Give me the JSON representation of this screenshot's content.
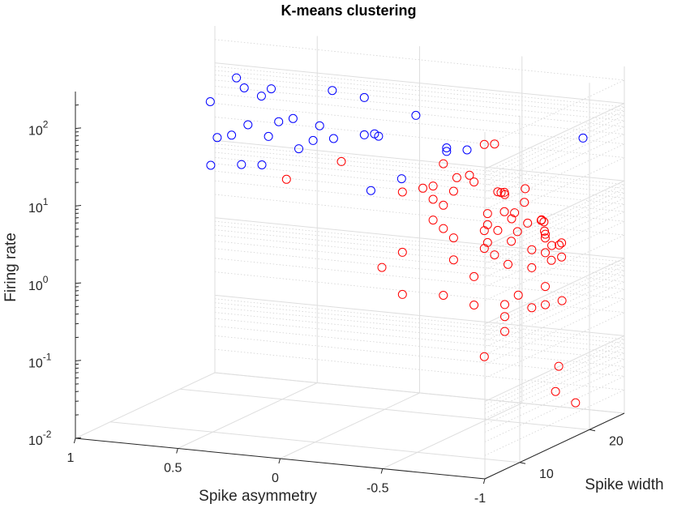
{
  "chart_data": {
    "type": "scatter",
    "title": "K-means clustering",
    "xlabel": "Spike asymmetry",
    "ylabel": "Spike width",
    "zlabel": "Firing rate",
    "x_ticks": [
      {
        "value": 1,
        "label": "1"
      },
      {
        "value": 0.5,
        "label": "0.5"
      },
      {
        "value": 0,
        "label": "0"
      },
      {
        "value": -0.5,
        "label": "-0.5"
      },
      {
        "value": -1,
        "label": "-1"
      }
    ],
    "y_ticks": [
      {
        "value": 10,
        "label": "10"
      },
      {
        "value": 20,
        "label": "20"
      }
    ],
    "z_ticks": [
      {
        "value": 0.01,
        "base": "10",
        "exp": "-2"
      },
      {
        "value": 0.1,
        "base": "10",
        "exp": "-1"
      },
      {
        "value": 1,
        "base": "10",
        "exp": "0"
      },
      {
        "value": 10,
        "base": "10",
        "exp": "1"
      },
      {
        "value": 100,
        "base": "10",
        "exp": "2"
      }
    ],
    "xlim": [
      -1,
      1
    ],
    "ylim": [
      5,
      25
    ],
    "zlim": [
      0.01,
      300
    ],
    "zscale": "log",
    "grid": true,
    "view": "3d",
    "series": [
      {
        "color": "#0000ff",
        "points": [
          [
            0.52,
            14,
            250
          ],
          [
            0.35,
            14,
            200
          ],
          [
            0.12,
            16,
            180
          ],
          [
            0.55,
            16,
            150
          ],
          [
            0.5,
            17,
            110
          ],
          [
            0.1,
            20,
            100
          ],
          [
            0.75,
            17,
            80
          ],
          [
            0.38,
            18,
            55
          ],
          [
            0.25,
            18,
            48
          ],
          [
            0.45,
            18,
            48
          ],
          [
            -0.05,
            23,
            48
          ],
          [
            -0.9,
            22,
            45
          ],
          [
            0.6,
            18,
            40
          ],
          [
            0.05,
            20,
            35
          ],
          [
            0.03,
            20,
            33
          ],
          [
            0.1,
            20,
            33
          ],
          [
            0.5,
            18,
            30
          ],
          [
            0.68,
            18,
            28
          ],
          [
            0.25,
            20,
            27
          ],
          [
            0.75,
            18,
            25
          ],
          [
            0.35,
            20,
            24
          ],
          [
            0.42,
            20,
            18
          ],
          [
            -0.2,
            23,
            20
          ],
          [
            -0.3,
            23,
            20
          ],
          [
            -0.2,
            23,
            18
          ],
          [
            0.6,
            20,
            10
          ],
          [
            0.7,
            20,
            9.5
          ],
          [
            0.85,
            20,
            8.5
          ],
          [
            0.02,
            23,
            7
          ],
          [
            0.17,
            23,
            4.5
          ]
        ]
      },
      {
        "color": "#ff0000",
        "points": [
          [
            -0.4,
            24,
            23
          ],
          [
            -0.35,
            24,
            22
          ],
          [
            0.28,
            22,
            11
          ],
          [
            -0.15,
            24,
            11
          ],
          [
            -0.38,
            21,
            12
          ],
          [
            -0.72,
            19,
            12
          ],
          [
            -0.62,
            19,
            9.5
          ],
          [
            -0.75,
            18,
            9
          ],
          [
            -0.25,
            23,
            8.5
          ],
          [
            -0.55,
            21,
            8
          ],
          [
            0.48,
            20,
            7
          ],
          [
            -0.5,
            22,
            7
          ],
          [
            -0.3,
            24,
            7
          ],
          [
            -0.45,
            23,
            6.3
          ],
          [
            -0.9,
            16,
            7
          ],
          [
            -0.8,
            17,
            5.5
          ],
          [
            -0.88,
            17,
            6
          ],
          [
            -0.1,
            24,
            5.5
          ],
          [
            -0.05,
            24,
            5
          ],
          [
            -0.2,
            24,
            5
          ],
          [
            -0.55,
            21,
            4.5
          ],
          [
            -0.6,
            21,
            4.5
          ],
          [
            -0.8,
            19,
            5
          ],
          [
            -0.92,
            16,
            4.2
          ],
          [
            -0.62,
            20,
            4.2
          ],
          [
            0.05,
            24,
            4.2
          ],
          [
            -0.1,
            24,
            3.7
          ],
          [
            -1.0,
            16,
            3.8
          ],
          [
            -0.15,
            24,
            3.2
          ],
          [
            -0.4,
            23,
            3.2
          ],
          [
            -0.78,
            20,
            3.2
          ],
          [
            -0.75,
            21,
            2.6
          ],
          [
            -0.92,
            18,
            2.8
          ],
          [
            -1.0,
            16,
            2.5
          ],
          [
            -0.4,
            23,
            2.3
          ],
          [
            -0.58,
            22,
            2.3
          ],
          [
            -0.45,
            23,
            2.0
          ],
          [
            -0.1,
            24,
            2.0
          ],
          [
            -0.85,
            19,
            2.4
          ],
          [
            -0.95,
            16,
            2.2
          ],
          [
            -0.15,
            24,
            1.6
          ],
          [
            -0.35,
            24,
            1.7
          ],
          [
            -0.55,
            22,
            1.7
          ],
          [
            -0.75,
            21,
            1.5
          ],
          [
            -0.65,
            22,
            1.4
          ],
          [
            -0.4,
            23,
            1.35
          ],
          [
            -0.2,
            24,
            1.25
          ],
          [
            -0.35,
            24,
            1.0
          ],
          [
            -0.4,
            24,
            0.85
          ],
          [
            -0.65,
            22,
            0.82
          ],
          [
            -0.5,
            23,
            0.75
          ],
          [
            0.05,
            24,
            0.7
          ],
          [
            -0.2,
            24,
            0.65
          ],
          [
            -0.75,
            21,
            0.55
          ],
          [
            -0.9,
            19,
            0.48
          ],
          [
            -0.3,
            24,
            0.42
          ],
          [
            0.15,
            24,
            0.42
          ],
          [
            -0.55,
            23,
            0.31
          ],
          [
            -0.75,
            21,
            0.32
          ],
          [
            -0.65,
            22,
            0.25
          ],
          [
            -0.15,
            24,
            0.22
          ],
          [
            -0.45,
            24,
            0.2
          ],
          [
            0.05,
            24,
            0.2
          ],
          [
            -0.3,
            24,
            0.18
          ],
          [
            -0.45,
            24,
            0.14
          ],
          [
            -0.45,
            24,
            0.09
          ],
          [
            -0.85,
            20,
            0.06
          ],
          [
            -0.35,
            24,
            0.04
          ],
          [
            -0.8,
            21,
            0.025
          ],
          [
            -1.0,
            18,
            0.027
          ]
        ]
      }
    ]
  }
}
